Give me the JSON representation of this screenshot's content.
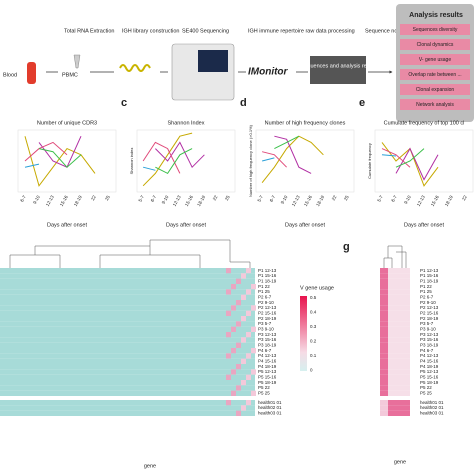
{
  "workflow": {
    "blood": "Blood",
    "pbmc": "PBMC",
    "rna": "Total RNA Extraction",
    "library": "IGH library construction",
    "sequencing": "SE400 Sequencing",
    "processing": "IGH immune repertoire raw data processing",
    "tool": "IMonitor",
    "result_box": "Sequences and analysis result",
    "normalization": "Sequence normalization and analysis"
  },
  "analysis_results": {
    "title": "Analysis results",
    "items": [
      "Sequences diversity",
      "Clonal dynamics",
      "V- gene usage",
      "Overlap rate between ...",
      "Clonal expansion",
      "Network analysis"
    ]
  },
  "line_panels": [
    {
      "title": "Number of unique CDR3",
      "x_labels": [
        "6-7",
        "9-10",
        "12-13",
        "15-16",
        "18-19",
        "22",
        "25"
      ],
      "x_axis_label": "Days after onset"
    },
    {
      "letter": "c",
      "title": "Shannon Index",
      "y_axis_label": "Shannon index",
      "x_labels": [
        "5-7",
        "6-7",
        "9-10",
        "12-13",
        "15-16",
        "18-19",
        "22",
        "25"
      ],
      "x_axis_label": "Days after onset"
    },
    {
      "letter": "d",
      "title": "Number of high frequency clones",
      "y_axis_label": "Number of high frequency clone (>0.1%)",
      "x_labels": [
        "5-7",
        "6-7",
        "9-10",
        "12-13",
        "15-16",
        "18-19",
        "22",
        "25"
      ],
      "x_axis_label": "Days after onset"
    },
    {
      "letter": "e",
      "title": "Cumulate frequency of top 100 cl",
      "y_axis_label": "Cumulate frequency",
      "x_labels": [
        "5-7",
        "6-7",
        "9-10",
        "12-13",
        "15-16",
        "18-19",
        "22"
      ],
      "x_axis_label": "Days after onset"
    }
  ],
  "heatmap": {
    "rows": [
      "P1 12-13",
      "P1 15-16",
      "P1 18-19",
      "P1 22",
      "P1 25",
      "P2 6-7",
      "P2 9-10",
      "P2 12-13",
      "P2 15-16",
      "P2 18-19",
      "P3 5-7",
      "P3 9-10",
      "P3 12-13",
      "P3 15-16",
      "P3 18-19",
      "P4 6-7",
      "P4 12-13",
      "P4 15-16",
      "P4 18-19",
      "P5 12-13",
      "P5 15-16",
      "P5 18-19",
      "P5 22",
      "P5 25",
      "health01 01",
      "health02 01",
      "health03 01"
    ],
    "legend_title": "V gene usage",
    "legend_ticks": [
      "0.5",
      "0.4",
      "0.3",
      "0.2",
      "0.1",
      "0"
    ],
    "x_axis_label": "gene"
  },
  "panel_g": {
    "letter": "g",
    "rows": [
      "P1 12-13",
      "P1 15-16",
      "P1 18-19",
      "P1 22",
      "P1 25",
      "P2 6-7",
      "P2 9-10",
      "P2 12-13",
      "P2 15-16",
      "P2 18-19",
      "P3 5-7",
      "P3 9-10",
      "P3 12-13",
      "P3 15-16",
      "P3 18-19",
      "P4 6-7",
      "P4 12-13",
      "P4 15-16",
      "P4 18-19",
      "P5 12-13",
      "P5 15-16",
      "P5 18-19",
      "P5 22",
      "P5 25",
      "health01 01",
      "health02 01",
      "health03 01"
    ],
    "x_axis_label": "gene"
  }
}
